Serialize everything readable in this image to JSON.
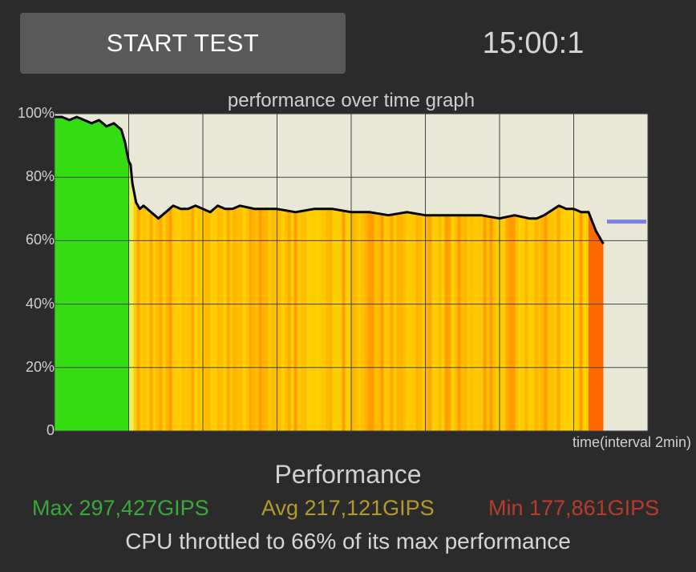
{
  "header": {
    "start_button_label": "START TEST",
    "timer": "15:00:1"
  },
  "chart_data": {
    "type": "area",
    "title": "performance over time graph",
    "xlabel": "time(interval 2min)",
    "ylabel": "",
    "yticks": [
      "100%",
      "80%",
      "60%",
      "40%",
      "20%",
      "0"
    ],
    "ylim": [
      0,
      100
    ],
    "x_interval_minutes": 2,
    "xlim": [
      0,
      16
    ],
    "grid": true,
    "fill_colors": {
      "high": "#33dd11",
      "mid": "#ffcc00",
      "low": "#ff6a00"
    },
    "line_color": "#000000",
    "average_marker": {
      "value": 66,
      "color": "#6f74e8"
    },
    "series": [
      {
        "x": [
          0,
          0.2,
          0.4,
          0.6,
          0.8,
          1.0,
          1.2,
          1.4,
          1.6,
          1.8,
          1.9,
          2.0,
          2.05,
          2.1,
          2.2,
          2.3,
          2.4,
          2.6,
          2.8,
          3.0,
          3.2,
          3.4,
          3.6,
          3.8,
          4.0,
          4.2,
          4.4,
          4.6,
          4.8,
          5.0,
          5.4,
          6.0,
          6.5,
          7.0,
          7.5,
          8.0,
          8.5,
          9.0,
          9.5,
          10.0,
          10.5,
          11.0,
          11.5,
          12.0,
          12.4,
          12.8,
          13.0,
          13.2,
          13.6,
          13.8,
          14.0,
          14.2,
          14.4,
          14.6,
          14.8
        ],
        "y": [
          99,
          99,
          98,
          99,
          98,
          97,
          98,
          96,
          97,
          95,
          91,
          85,
          84,
          78,
          72,
          70,
          71,
          69,
          67,
          69,
          71,
          70,
          70,
          71,
          70,
          69,
          71,
          70,
          70,
          71,
          70,
          70,
          69,
          70,
          70,
          69,
          69,
          68,
          69,
          68,
          68,
          68,
          68,
          67,
          68,
          67,
          67,
          68,
          71,
          70,
          70,
          69,
          69,
          63,
          59
        ]
      }
    ]
  },
  "stats": {
    "title": "Performance",
    "max": "Max 297,427GIPS",
    "avg": "Avg 217,121GIPS",
    "min": "Min 177,861GIPS",
    "throttle_message": "CPU throttled to 66% of its max performance"
  }
}
